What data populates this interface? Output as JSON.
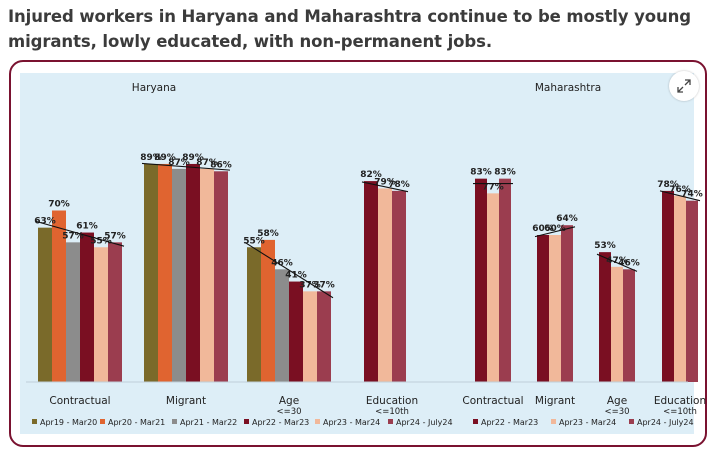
{
  "headline": "Injured workers in Haryana and Maharashtra continue to be mostly young migrants, lowly educated, with non-permanent jobs.",
  "expand_icon": "expand-arrows-icon",
  "colors": {
    "frame": "#7a1230",
    "panel": "#ddeef7",
    "Apr19 - Mar20": "#7a6a2a",
    "Apr20 - Mar21": "#e06430",
    "Apr21 - Mar22": "#8c8c8c",
    "Apr22 - Mar23": "#7a0f22",
    "Apr23 - Mar24": "#f1b89a",
    "Apr24 - July24": "#9b3d4f"
  },
  "chart_data": [
    {
      "type": "bar",
      "title": "Haryana",
      "categories": [
        "Contractual",
        "Migrant",
        "Age\n<=30",
        "Education\n<=10th"
      ],
      "series": [
        {
          "name": "Apr19 - Mar20",
          "values": [
            63,
            89,
            55,
            null
          ]
        },
        {
          "name": "Apr20 - Mar21",
          "values": [
            70,
            89,
            58,
            null
          ]
        },
        {
          "name": "Apr21 - Mar22",
          "values": [
            57,
            87,
            46,
            null
          ]
        },
        {
          "name": "Apr22 - Mar23",
          "values": [
            61,
            89,
            41,
            82
          ]
        },
        {
          "name": "Apr23 - Mar24",
          "values": [
            55,
            87,
            37,
            79
          ]
        },
        {
          "name": "Apr24 - July24",
          "values": [
            57,
            86,
            37,
            78
          ]
        }
      ],
      "ylim": [
        0,
        100
      ],
      "trendline": true,
      "legend": "bottom",
      "grid": false
    },
    {
      "type": "bar",
      "title": "Maharashtra",
      "categories": [
        "Contractual",
        "Migrant",
        "Age\n<=30",
        "Education\n<=10th"
      ],
      "series": [
        {
          "name": "Apr22 - Mar23",
          "values": [
            83,
            60,
            53,
            78
          ]
        },
        {
          "name": "Apr23 - Mar24",
          "values": [
            77,
            60,
            47,
            76
          ]
        },
        {
          "name": "Apr24 - July24",
          "values": [
            83,
            64,
            46,
            74
          ]
        }
      ],
      "ylim": [
        0,
        100
      ],
      "trendline": true,
      "legend": "bottom",
      "grid": false
    }
  ]
}
